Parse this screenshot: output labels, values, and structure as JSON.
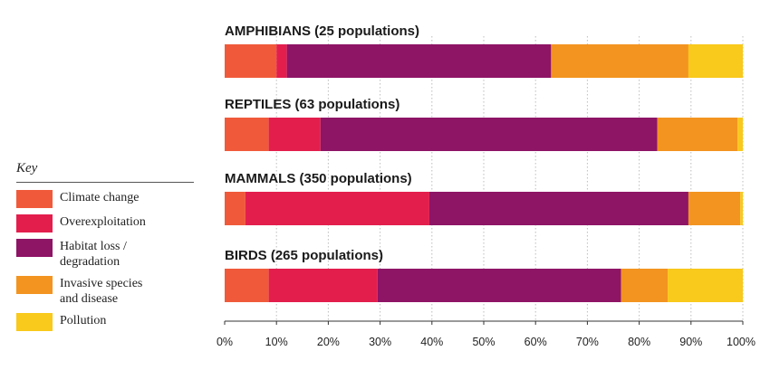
{
  "legend": {
    "title": "Key",
    "items": [
      {
        "label": "Climate change",
        "color": "#F05A3A"
      },
      {
        "label": "Overexploitation",
        "color": "#E31E4D"
      },
      {
        "label": "Habitat loss /\ndegradation",
        "color": "#8E1466"
      },
      {
        "label": "Invasive species\nand disease",
        "color": "#F39420"
      },
      {
        "label": "Pollution",
        "color": "#F9C91B"
      }
    ]
  },
  "chart_data": {
    "type": "bar",
    "orientation": "horizontal",
    "stacked": true,
    "categories": [
      "AMPHIBIANS (25 populations)",
      "REPTILES (63 populations)",
      "MAMMALS (350 populations)",
      "BIRDS (265 populations)"
    ],
    "series": [
      {
        "name": "Climate change",
        "color": "#F05A3A",
        "values": [
          10,
          8.5,
          4,
          8.5
        ]
      },
      {
        "name": "Overexploitation",
        "color": "#E31E4D",
        "values": [
          2,
          10,
          35.5,
          21
        ]
      },
      {
        "name": "Habitat loss / degradation",
        "color": "#8E1466",
        "values": [
          51,
          65,
          50,
          47
        ]
      },
      {
        "name": "Invasive species and disease",
        "color": "#F39420",
        "values": [
          26.5,
          15.5,
          10,
          9
        ]
      },
      {
        "name": "Pollution",
        "color": "#F9C91B",
        "values": [
          10.5,
          1,
          0.5,
          14.5
        ]
      }
    ],
    "xlim": [
      0,
      100
    ],
    "xticks": [
      "0%",
      "10%",
      "20%",
      "30%",
      "40%",
      "50%",
      "60%",
      "70%",
      "80%",
      "90%",
      "100%"
    ],
    "grid": "vertical dotted",
    "legend_position": "left"
  }
}
